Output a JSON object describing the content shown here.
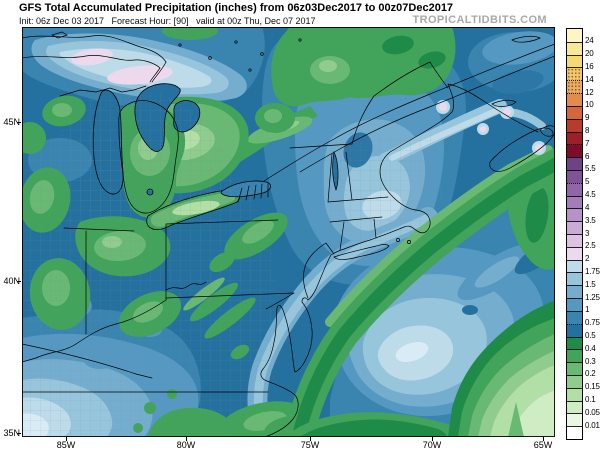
{
  "header": {
    "title": "GFS Total Accumulated Precipitation (inches) from 06z03Dec2017 to 00z07Dec2017",
    "init_line": "Init: 06z Dec 03 2017   Forecast Hour: [90]   valid at 00z Thu, Dec 07 2017",
    "watermark": "TROPICALTIDBITS.COM"
  },
  "axes": {
    "lat": [
      "45N",
      "40N",
      "35N"
    ],
    "lon": [
      "85W",
      "80W",
      "75W",
      "70W",
      "65W"
    ]
  },
  "colorbar": {
    "labels": [
      "24",
      "20",
      "16",
      "14",
      "12",
      "10",
      "9",
      "8",
      "7",
      "6",
      "5.5",
      "5",
      "4.5",
      "4",
      "3.5",
      "3",
      "2.5",
      "2",
      "1.75",
      "1.5",
      "1.25",
      "1",
      "0.75",
      "0.5",
      "0.4",
      "0.3",
      "0.2",
      "0.15",
      "0.1",
      "0.05",
      "0.01"
    ],
    "segments": [
      {
        "range": ">24",
        "color": "#fdf5c2",
        "dotted": false
      },
      {
        "range": "20-24",
        "color": "#f9e897",
        "dotted": false
      },
      {
        "range": "16-20",
        "color": "#f5da72",
        "dotted": false
      },
      {
        "range": "14-16",
        "color": "#f2c76c",
        "dotted": true
      },
      {
        "range": "12-14",
        "color": "#ecab62",
        "dotted": true
      },
      {
        "range": "10-12",
        "color": "#e18c4b",
        "dotted": false
      },
      {
        "range": "9-10",
        "color": "#d3663a",
        "dotted": false
      },
      {
        "range": "8-9",
        "color": "#b83c2b",
        "dotted": false
      },
      {
        "range": "7-8",
        "color": "#9c2027",
        "dotted": false
      },
      {
        "range": "6-7",
        "color": "#7d0c2e",
        "dotted": false
      },
      {
        "range": "5.5-6",
        "color": "#6f4285",
        "dotted": false
      },
      {
        "range": "5-5.5",
        "color": "#805399",
        "dotted": false
      },
      {
        "range": "4.5-5",
        "color": "#9166a8",
        "dotted": false
      },
      {
        "range": "4-4.5",
        "color": "#a37cb8",
        "dotted": false
      },
      {
        "range": "3.5-4",
        "color": "#b593c7",
        "dotted": false
      },
      {
        "range": "3-3.5",
        "color": "#c9abd6",
        "dotted": false
      },
      {
        "range": "2.5-3",
        "color": "#dec2e2",
        "dotted": false
      },
      {
        "range": "2-2.5",
        "color": "#ecd9ee",
        "dotted": false
      },
      {
        "range": "1.75-2",
        "color": "#bedbea",
        "dotted": false
      },
      {
        "range": "1.5-1.75",
        "color": "#97c5dc",
        "dotted": false
      },
      {
        "range": "1.25-1.5",
        "color": "#74adcd",
        "dotted": false
      },
      {
        "range": "1-1.25",
        "color": "#5598c1",
        "dotted": false
      },
      {
        "range": "0.75-1",
        "color": "#3a84b0",
        "dotted": false
      },
      {
        "range": "0.5-0.75",
        "color": "#24719f",
        "dotted": false
      },
      {
        "range": "0.4-0.5",
        "color": "#1e8c48",
        "dotted": false
      },
      {
        "range": "0.3-0.4",
        "color": "#42a35b",
        "dotted": false
      },
      {
        "range": "0.2-0.3",
        "color": "#69b974",
        "dotted": false
      },
      {
        "range": "0.15-0.2",
        "color": "#8fcc8d",
        "dotted": false
      },
      {
        "range": "0.1-0.15",
        "color": "#b2dfa6",
        "dotted": false
      },
      {
        "range": "0.05-0.1",
        "color": "#d0ecc4",
        "dotted": false
      },
      {
        "range": "0.01-0.05",
        "color": "#e9f8e3",
        "dotted": false
      },
      {
        "range": "<0.01",
        "color": "#ffffff",
        "dotted": false
      }
    ],
    "dotted_boundaries": [
      "14",
      "12",
      "7",
      "5",
      "0.75"
    ]
  },
  "chart_data": {
    "type": "heatmap",
    "title": "GFS Total Accumulated Precipitation (inches) from 06z03Dec2017 to 00z07Dec2017",
    "variable": "Total Accumulated Precipitation",
    "units": "inches",
    "model": "GFS",
    "init": "06z Dec 03 2017",
    "forecast_hour": "[90]",
    "valid": "00z Thu, Dec 07 2017",
    "accumulation_from": "06z03Dec2017",
    "accumulation_to": "00z07Dec2017",
    "lat_ticks": [
      "45N",
      "40N",
      "35N"
    ],
    "lon_ticks": [
      "85W",
      "80W",
      "75W",
      "70W",
      "65W"
    ],
    "levels_inches": [
      0.01,
      0.05,
      0.1,
      0.15,
      0.2,
      0.3,
      0.4,
      0.5,
      0.75,
      1,
      1.25,
      1.5,
      1.75,
      2,
      2.5,
      3,
      3.5,
      4,
      4.5,
      5,
      5.5,
      6,
      7,
      8,
      9,
      10,
      12,
      14,
      16,
      20,
      24
    ],
    "visible_maxima": [
      "2-2.5 inch pink band near eastern Lake Superior / Sault Ste. Marie",
      "1.75-2.5 inch light-blue/pink spots over Maine, New Brunswick and Nova Scotia",
      "1.75-2 inch offshore Atlantic maximum near 70W 38N",
      "1.25-1.75 inch area over Tennessee / western North Carolina"
    ],
    "visible_minima": [
      "0.05-0.2 inch light-green wedge in the far southeast Atlantic corner",
      "0.1-0.3 inch cores over southern Ontario and interior Quebec"
    ]
  }
}
